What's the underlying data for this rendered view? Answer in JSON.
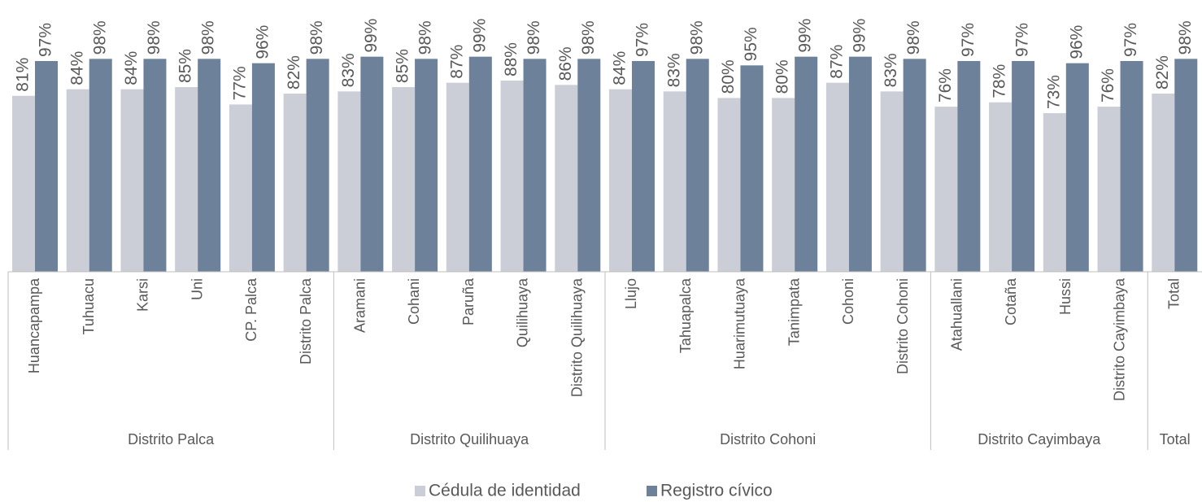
{
  "chart_data": {
    "type": "bar",
    "categories": [
      "Huancapampa",
      "Tuhuacu",
      "Karsi",
      "Uni",
      "CP. Palca",
      "Distrito Palca",
      "Aramani",
      "Cohani",
      "Paruña",
      "Quilihuaya",
      "Distrito Quilihuaya",
      "Llujo",
      "Tahuapalca",
      "Huarimutuaya",
      "Tanimpata",
      "Cohoni",
      "Distrito Cohoni",
      "Atahuallani",
      "Cotaña",
      "Hussi",
      "Distrito Cayimbaya",
      "Total"
    ],
    "groups": [
      {
        "label": "Distrito Palca",
        "size": 6
      },
      {
        "label": "Distrito Quilihuaya",
        "size": 5
      },
      {
        "label": "Distrito Cohoni",
        "size": 6
      },
      {
        "label": "Distrito Cayimbaya",
        "size": 4
      },
      {
        "label": "Total",
        "size": 1
      }
    ],
    "series": [
      {
        "name": "Cédula de identidad",
        "color": "#cbced6",
        "values": [
          81,
          84,
          84,
          85,
          77,
          82,
          83,
          85,
          87,
          88,
          86,
          84,
          83,
          80,
          80,
          87,
          83,
          76,
          78,
          73,
          76,
          82
        ],
        "value_labels": [
          "81%",
          "84%",
          "84%",
          "85%",
          "77%",
          "82%",
          "83%",
          "85%",
          "87%",
          "88%",
          "86%",
          "84%",
          "83%",
          "80%",
          "80%",
          "87%",
          "83%",
          "76%",
          "78%",
          "73%",
          "76%",
          "82%"
        ]
      },
      {
        "name": "Registro cívico",
        "color": "#6e819a",
        "values": [
          97,
          98,
          98,
          98,
          96,
          98,
          99,
          98,
          99,
          98,
          98,
          97,
          98,
          95,
          99,
          99,
          98,
          97,
          97,
          96,
          97,
          98
        ],
        "value_labels": [
          "97%",
          "98%",
          "98%",
          "98%",
          "96%",
          "98%",
          "99%",
          "98%",
          "99%",
          "98%",
          "98%",
          "97%",
          "98%",
          "95%",
          "99%",
          "99%",
          "98%",
          "97%",
          "97%",
          "96%",
          "97%",
          "98%"
        ]
      }
    ],
    "ylim": [
      0,
      100
    ],
    "legend": "bottom"
  }
}
